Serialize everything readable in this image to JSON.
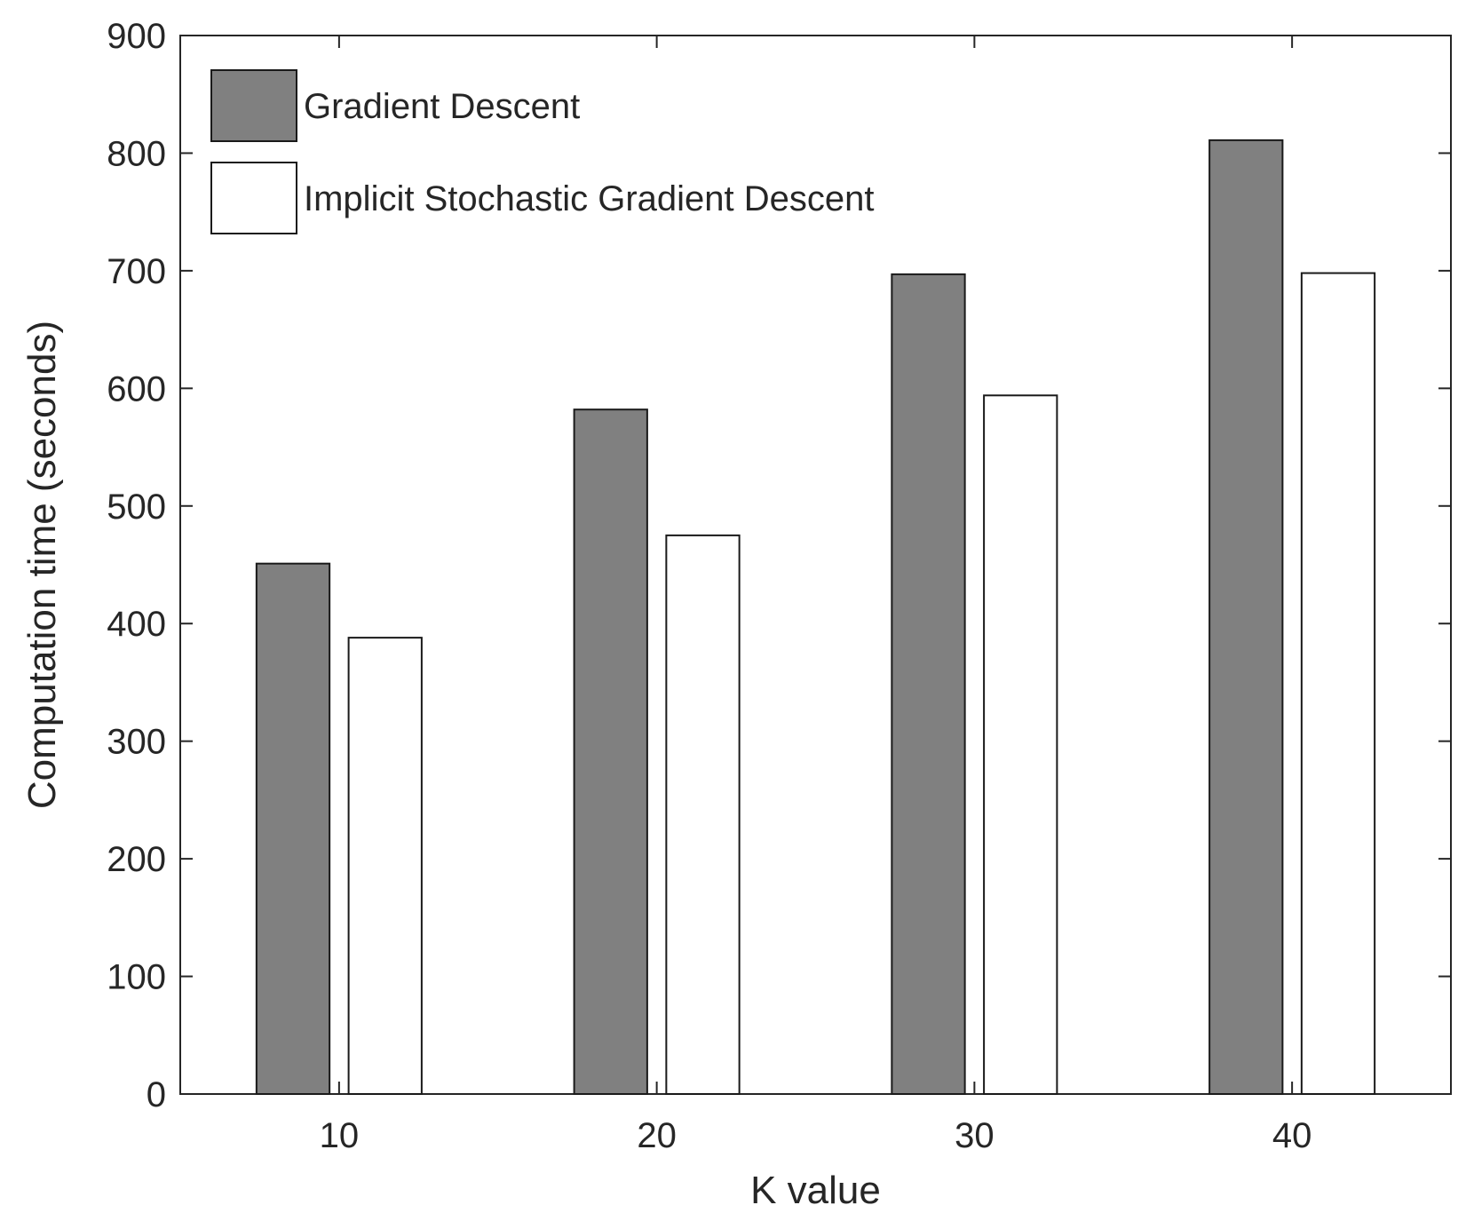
{
  "chart_data": {
    "type": "bar",
    "categories": [
      "10",
      "20",
      "30",
      "40"
    ],
    "series": [
      {
        "name": "Gradient Descent",
        "values": [
          451,
          582,
          697,
          811
        ],
        "color": "#808080"
      },
      {
        "name": "Implicit Stochastic Gradient Descent",
        "values": [
          388,
          475,
          594,
          698
        ],
        "color": "#ffffff"
      }
    ],
    "title": "",
    "xlabel": "K value",
    "ylabel": "Computation time (seconds)",
    "ylim": [
      0,
      900
    ],
    "yticks": [
      "0",
      "100",
      "200",
      "300",
      "400",
      "500",
      "600",
      "700",
      "800",
      "900"
    ],
    "xlim": [
      5,
      45
    ],
    "grid": false,
    "legend_position": "top-left"
  }
}
